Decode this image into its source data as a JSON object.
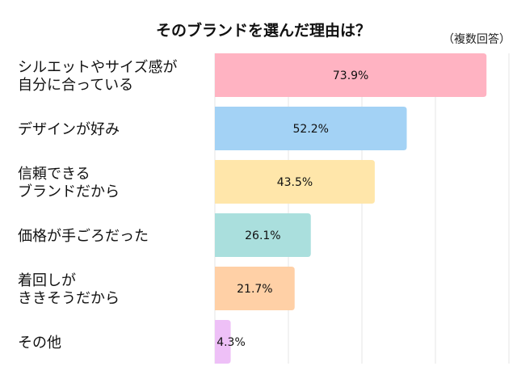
{
  "chart_data": {
    "type": "bar",
    "orientation": "horizontal",
    "title": "そのブランドを選んだ理由は？",
    "subtitle": "（複数回答）",
    "categories": [
      [
        "シルエットやサイズ感が",
        "自分に合っている"
      ],
      [
        "デザインが好み"
      ],
      [
        "信頼できる",
        "ブランドだから"
      ],
      [
        "価格が手ごろだった"
      ],
      [
        "着回しが",
        "ききそうだから"
      ],
      [
        "その他"
      ]
    ],
    "values": [
      73.9,
      52.2,
      43.5,
      26.1,
      21.7,
      4.3
    ],
    "value_labels": [
      "73.9%",
      "52.2%",
      "43.5%",
      "26.1%",
      "21.7%",
      "4.3%"
    ],
    "colors": [
      "#FFB3C2",
      "#A3D2F5",
      "#FFE6AA",
      "#AADFDD",
      "#FFD0A6",
      "#EEC0F7"
    ],
    "xlim": [
      0,
      80
    ],
    "grid": true,
    "grid_step": 20,
    "legend": "none"
  }
}
